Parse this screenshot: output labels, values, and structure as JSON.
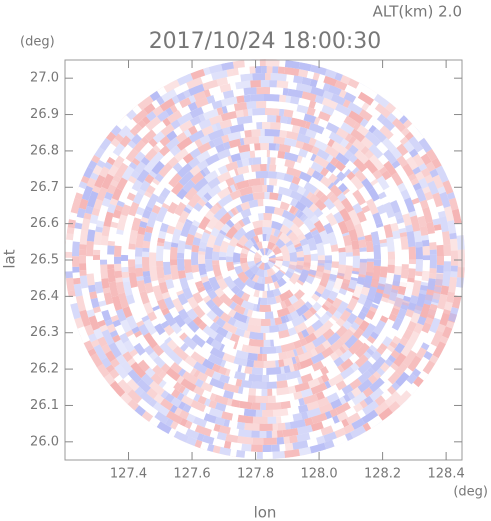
{
  "chart_data": {
    "type": "radar-map",
    "title": "2017/10/24 18:00:30",
    "subtitle": "ALT(km) 2.0",
    "x_label": "lon",
    "y_label": "lat",
    "x_unit": "(deg)",
    "y_unit": "(deg)",
    "xlim": [
      127.2,
      128.45
    ],
    "ylim": [
      25.95,
      27.05
    ],
    "xticks": [
      127.4,
      127.6,
      127.8,
      {
        "value": 128,
        "label": "128.0"
      },
      128.2,
      128.4
    ],
    "yticks": [
      {
        "value": 26,
        "label": "26.0"
      },
      26.1,
      26.2,
      26.3,
      26.4,
      26.5,
      26.6,
      26.7,
      26.8,
      26.9,
      {
        "value": 27,
        "label": "27.0"
      }
    ],
    "colors": [
      "#f5b3b3",
      "#b7bcf5"
    ]
  }
}
